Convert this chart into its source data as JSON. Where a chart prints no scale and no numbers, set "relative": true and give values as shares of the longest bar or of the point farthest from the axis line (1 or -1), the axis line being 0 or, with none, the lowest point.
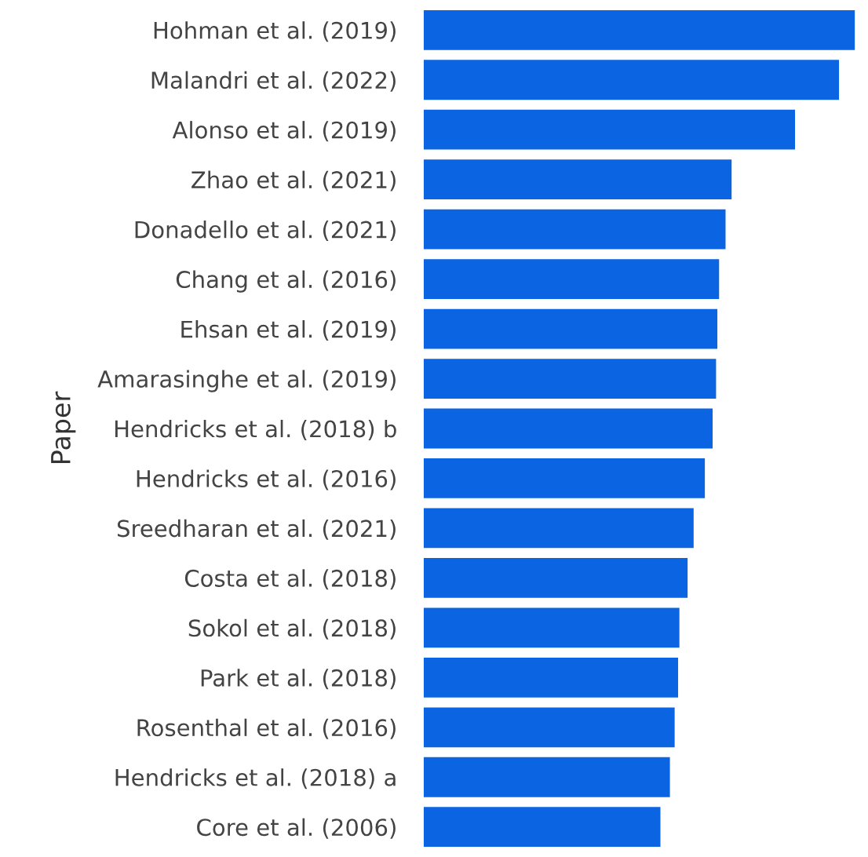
{
  "chart_data": {
    "type": "bar",
    "orientation": "horizontal",
    "relative": true,
    "ylabel": "Paper",
    "color": "#0b65e3",
    "categories": [
      "Hohman et al. (2019)",
      "Malandri et al. (2022)",
      "Alonso et al. (2019)",
      "Zhao et al. (2021)",
      "Donadello et al. (2021)",
      "Chang et al. (2016)",
      "Ehsan et al. (2019)",
      "Amarasinghe et al. (2019)",
      "Hendricks et al. (2018) b",
      "Hendricks et al. (2016)",
      "Sreedharan et al. (2021)",
      "Costa et al. (2018)",
      "Sokol et al. (2018)",
      "Park et al. (2018)",
      "Rosenthal et al. (2016)",
      "Hendricks et al. (2018) a",
      "Core et al. (2006)"
    ],
    "values": [
      1,
      0.963,
      0.861,
      0.714,
      0.7,
      0.685,
      0.681,
      0.678,
      0.67,
      0.652,
      0.626,
      0.612,
      0.593,
      0.59,
      0.582,
      0.571,
      0.549
    ]
  }
}
